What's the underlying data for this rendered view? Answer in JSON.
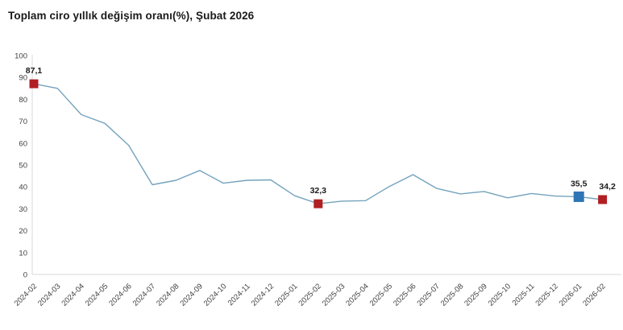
{
  "title": "Toplam ciro yıllık değişim oranı(%), Şubat 2026",
  "colors": {
    "line": "#74a3bd",
    "axis": "#d9d9d9",
    "tick_text": "#404040",
    "title_text": "#1a1a1a",
    "point_label_text": "#1a1a1a",
    "highlight_red": "#b01f24",
    "highlight_blue": "#2e75b6",
    "background": "#ffffff"
  },
  "chart_data": {
    "type": "line",
    "title": "Toplam ciro yıllık değişim oranı(%), Şubat 2026",
    "xlabel": "",
    "ylabel": "",
    "ylim": [
      0,
      100
    ],
    "yticks": [
      0,
      10,
      20,
      30,
      40,
      50,
      60,
      70,
      80,
      90,
      100
    ],
    "grid": false,
    "legend": false,
    "categories": [
      "2024-02",
      "2024-03",
      "2024-04",
      "2024-05",
      "2024-06",
      "2024-07",
      "2024-08",
      "2024-09",
      "2024-10",
      "2024-11",
      "2024-12",
      "2025-01",
      "2025-02",
      "2025-03",
      "2025-04",
      "2025-05",
      "2025-06",
      "2025-07",
      "2025-08",
      "2025-09",
      "2025-10",
      "2025-11",
      "2025-12",
      "2026-01",
      "2026-02"
    ],
    "series": [
      {
        "name": "Toplam ciro yıllık değişim oranı (%)",
        "values": [
          87.1,
          85,
          73,
          69,
          59,
          41,
          43,
          47.5,
          41.7,
          43,
          43.2,
          36,
          32.3,
          33.5,
          33.7,
          40.2,
          45.6,
          39.3,
          36.8,
          37.9,
          35,
          37,
          35.8,
          35.5,
          34.2
        ]
      }
    ],
    "highlighted_points": [
      {
        "category": "2024-02",
        "value": 87.1,
        "label": "87,1",
        "color": "#b01f24"
      },
      {
        "category": "2025-02",
        "value": 32.3,
        "label": "32,3",
        "color": "#b01f24"
      },
      {
        "category": "2026-01",
        "value": 35.5,
        "label": "35,5",
        "color": "#2e75b6"
      },
      {
        "category": "2026-02",
        "value": 34.2,
        "label": "34,2",
        "color": "#b01f24"
      }
    ]
  }
}
